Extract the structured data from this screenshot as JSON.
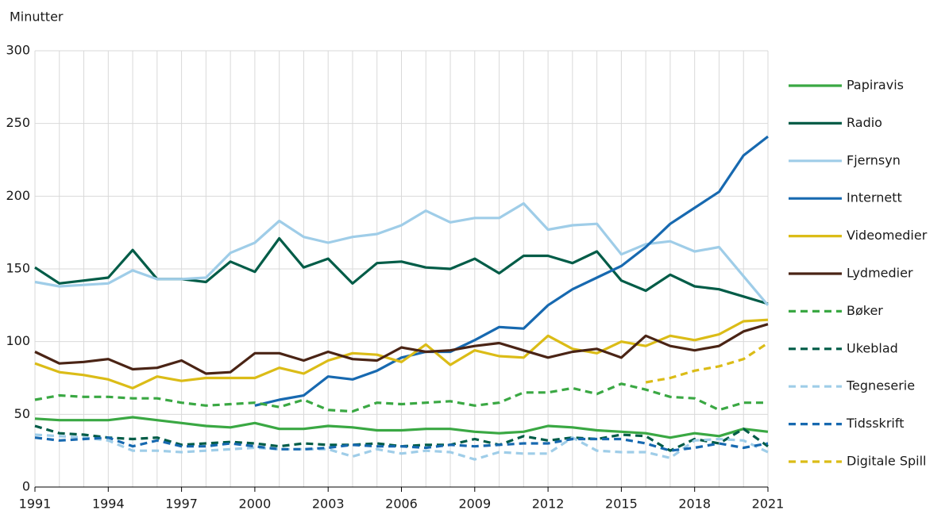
{
  "chart_data": {
    "type": "line",
    "y_label": "Minutter",
    "x": [
      1991,
      1992,
      1993,
      1994,
      1995,
      1996,
      1997,
      1998,
      1999,
      2000,
      2001,
      2002,
      2003,
      2004,
      2005,
      2006,
      2007,
      2008,
      2009,
      2010,
      2011,
      2012,
      2013,
      2014,
      2015,
      2016,
      2017,
      2018,
      2019,
      2020,
      2021
    ],
    "xlim": [
      1991,
      2021
    ],
    "xticks": [
      1991,
      1994,
      1997,
      2000,
      2003,
      2006,
      2009,
      2012,
      2015,
      2018,
      2021
    ],
    "ylim": [
      0,
      300
    ],
    "yticks": [
      0,
      50,
      100,
      150,
      200,
      250,
      300
    ],
    "grid": true,
    "legend": "right",
    "series": [
      {
        "name": "Papiravis",
        "color": "#3aa843",
        "dashed": false,
        "values": [
          47,
          46,
          46,
          46,
          48,
          46,
          44,
          42,
          41,
          44,
          40,
          40,
          42,
          41,
          39,
          39,
          40,
          40,
          38,
          37,
          38,
          42,
          41,
          39,
          38,
          37,
          34,
          37,
          35,
          40,
          38
        ]
      },
      {
        "name": "Radio",
        "color": "#005c47",
        "dashed": false,
        "values": [
          151,
          140,
          142,
          144,
          163,
          143,
          143,
          141,
          155,
          148,
          171,
          151,
          157,
          140,
          154,
          155,
          151,
          150,
          157,
          147,
          159,
          159,
          154,
          162,
          142,
          135,
          146,
          138,
          136,
          131,
          126
        ]
      },
      {
        "name": "Fjernsyn",
        "color": "#9fcde8",
        "dashed": false,
        "values": [
          141,
          138,
          139,
          140,
          149,
          143,
          143,
          144,
          161,
          168,
          183,
          172,
          168,
          172,
          174,
          180,
          190,
          182,
          185,
          185,
          195,
          177,
          180,
          181,
          160,
          167,
          169,
          162,
          165,
          145,
          125
        ]
      },
      {
        "name": "Internett",
        "color": "#1769b0",
        "dashed": false,
        "values": [
          null,
          null,
          null,
          null,
          null,
          null,
          null,
          null,
          null,
          56,
          60,
          63,
          76,
          74,
          80,
          89,
          93,
          93,
          101,
          110,
          109,
          125,
          136,
          144,
          152,
          165,
          181,
          192,
          203,
          228,
          241
        ]
      },
      {
        "name": "Videomedier",
        "color": "#dbbc17",
        "dashed": false,
        "values": [
          85,
          79,
          77,
          74,
          68,
          76,
          73,
          75,
          75,
          75,
          82,
          78,
          87,
          92,
          91,
          86,
          98,
          84,
          94,
          90,
          89,
          104,
          95,
          92,
          100,
          97,
          104,
          101,
          105,
          114,
          115
        ]
      },
      {
        "name": "Lydmedier",
        "color": "#4a2415",
        "dashed": false,
        "values": [
          93,
          85,
          86,
          88,
          81,
          82,
          87,
          78,
          79,
          92,
          92,
          87,
          93,
          88,
          87,
          96,
          93,
          94,
          97,
          99,
          94,
          89,
          93,
          95,
          89,
          104,
          97,
          94,
          97,
          107,
          112
        ]
      },
      {
        "name": "Bøker",
        "color": "#3aa843",
        "dashed": true,
        "values": [
          60,
          63,
          62,
          62,
          61,
          61,
          58,
          56,
          57,
          58,
          55,
          60,
          53,
          52,
          58,
          57,
          58,
          59,
          56,
          58,
          65,
          65,
          68,
          64,
          71,
          67,
          62,
          61,
          53,
          58,
          58
        ]
      },
      {
        "name": "Ukeblad",
        "color": "#005c47",
        "dashed": true,
        "values": [
          42,
          37,
          36,
          34,
          33,
          34,
          29,
          30,
          31,
          30,
          28,
          30,
          29,
          29,
          30,
          28,
          29,
          29,
          33,
          29,
          35,
          32,
          34,
          33,
          36,
          35,
          25,
          33,
          30,
          40,
          28
        ]
      },
      {
        "name": "Tegneserie",
        "color": "#9fcde8",
        "dashed": true,
        "values": [
          36,
          35,
          34,
          32,
          25,
          25,
          24,
          25,
          26,
          27,
          26,
          26,
          26,
          21,
          26,
          23,
          25,
          24,
          19,
          24,
          23,
          23,
          34,
          25,
          24,
          24,
          20,
          32,
          33,
          32,
          24
        ]
      },
      {
        "name": "Tidsskrift",
        "color": "#1769b0",
        "dashed": true,
        "values": [
          34,
          32,
          33,
          34,
          28,
          32,
          28,
          28,
          30,
          28,
          26,
          26,
          27,
          29,
          28,
          28,
          27,
          29,
          28,
          29,
          30,
          30,
          33,
          33,
          33,
          30,
          25,
          27,
          30,
          27,
          30
        ]
      },
      {
        "name": "Digitale Spill",
        "color": "#dbbc17",
        "dashed": true,
        "values": [
          null,
          null,
          null,
          null,
          null,
          null,
          null,
          null,
          null,
          null,
          null,
          null,
          null,
          null,
          null,
          null,
          null,
          null,
          null,
          null,
          null,
          null,
          null,
          null,
          null,
          72,
          75,
          80,
          83,
          88,
          99
        ]
      }
    ]
  }
}
